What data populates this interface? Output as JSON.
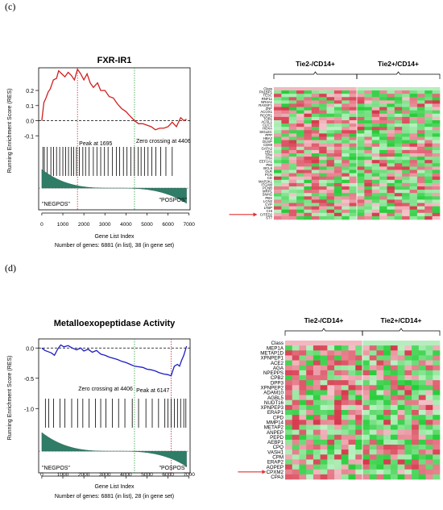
{
  "panels": [
    {
      "label": "(c)",
      "gsea": {
        "title": "FXR-IR1",
        "ylabel": "Running Enrichment Score (RES)",
        "xlabel": "Gene List Index",
        "footnote": "Number of genes: 6881 (in list), 38 (in gene set)",
        "yticks": [
          "0.2",
          "0.1",
          "0.0",
          "-0.1"
        ],
        "xticks": [
          "0",
          "1000",
          "2000",
          "3000",
          "4000",
          "5000",
          "6000",
          "7000"
        ],
        "peak_text": "Peak at 1695",
        "zero_text": "Zero crossing at 4406",
        "left_label": "\"NEGPOS\"",
        "right_label": "\"POSPOS\"",
        "ylim": [
          -0.12,
          0.35
        ],
        "peak_index": 1695,
        "zero_index": 4406,
        "curve": [
          [
            0,
            0.0
          ],
          [
            100,
            0.12
          ],
          [
            200,
            0.15
          ],
          [
            300,
            0.19
          ],
          [
            400,
            0.21
          ],
          [
            550,
            0.27
          ],
          [
            700,
            0.28
          ],
          [
            800,
            0.33
          ],
          [
            950,
            0.31
          ],
          [
            1100,
            0.29
          ],
          [
            1250,
            0.32
          ],
          [
            1400,
            0.3
          ],
          [
            1550,
            0.27
          ],
          [
            1695,
            0.34
          ],
          [
            1850,
            0.31
          ],
          [
            2000,
            0.27
          ],
          [
            2150,
            0.31
          ],
          [
            2300,
            0.25
          ],
          [
            2450,
            0.22
          ],
          [
            2650,
            0.25
          ],
          [
            2800,
            0.2
          ],
          [
            3000,
            0.2
          ],
          [
            3200,
            0.16
          ],
          [
            3400,
            0.15
          ],
          [
            3600,
            0.11
          ],
          [
            3800,
            0.08
          ],
          [
            4000,
            0.06
          ],
          [
            4200,
            0.03
          ],
          [
            4406,
            0.0
          ],
          [
            4600,
            -0.02
          ],
          [
            4800,
            -0.02
          ],
          [
            5000,
            -0.03
          ],
          [
            5200,
            -0.04
          ],
          [
            5400,
            -0.06
          ],
          [
            5600,
            -0.05
          ],
          [
            5800,
            -0.05
          ],
          [
            6000,
            -0.04
          ],
          [
            6200,
            -0.01
          ],
          [
            6400,
            -0.04
          ],
          [
            6600,
            0.02
          ],
          [
            6750,
            0.0
          ],
          [
            6881,
            0.01
          ]
        ],
        "hits": [
          50,
          120,
          260,
          430,
          560,
          700,
          850,
          1000,
          1130,
          1270,
          1400,
          1520,
          1650,
          1780,
          1950,
          2080,
          2250,
          2450,
          2620,
          2800,
          2980,
          3150,
          3360,
          3550,
          3700,
          3880,
          4050,
          4230,
          4400,
          4580,
          4720,
          4880,
          5050,
          5230,
          5420,
          5650,
          5900,
          6200
        ]
      },
      "heatmap": {
        "group_left": "Tie2-/CD14+",
        "group_right": "Tie2+/CD14+",
        "rows": [
          "Class",
          "FN1BP1",
          "TESC",
          "RNF11",
          "NR4A1",
          "RASSF1",
          "ZNF",
          "ACOX1",
          "RCOR1",
          "TOB1",
          "ACSL1",
          "CLIC1",
          "HOXA",
          "SIGLEC",
          "PPP",
          "HBA2",
          "DUSP",
          "CD69",
          "GATA2",
          "HBA",
          "TPM",
          "TRA",
          "EEF1A1",
          "PIM",
          "BCL6",
          "OLR",
          "PCN",
          "CD",
          "MAP2K1",
          "ITGAM",
          "PCNB",
          "MRPL",
          "SNHG",
          "PBX",
          "LCN2",
          "CYP",
          "LTBP",
          "CHI",
          "CITED2",
          "ST7"
        ],
        "arrow_row": "CITED2"
      }
    },
    {
      "label": "(d)",
      "gsea": {
        "title": "Metalloexopeptidase Activity",
        "ylabel": "Running Enrichment Score (RES)",
        "xlabel": "Gene List Index",
        "footnote": "Number of genes: 6881 (in list), 28 (in gene set)",
        "yticks": [
          "0.0",
          "-0.5",
          "-1.0"
        ],
        "xticks": [
          "0",
          "1000",
          "2000",
          "3000",
          "4000",
          "5000",
          "6000",
          "7000"
        ],
        "peak_text": "Peak at 6147",
        "zero_text": "Zero crossing at 4406",
        "left_label": "\"NEGPOS\"",
        "right_label": "\"POSPOS\"",
        "ylim": [
          -1.05,
          0.15
        ],
        "peak_index": 6147,
        "zero_index": 4406,
        "curve": [
          [
            0,
            0.0
          ],
          [
            150,
            -0.04
          ],
          [
            300,
            -0.06
          ],
          [
            450,
            -0.08
          ],
          [
            600,
            -0.12
          ],
          [
            750,
            -0.02
          ],
          [
            900,
            0.05
          ],
          [
            1050,
            0.02
          ],
          [
            1250,
            0.04
          ],
          [
            1450,
            0.0
          ],
          [
            1650,
            -0.03
          ],
          [
            1850,
            0.0
          ],
          [
            2000,
            -0.05
          ],
          [
            2200,
            -0.02
          ],
          [
            2400,
            -0.07
          ],
          [
            2600,
            -0.04
          ],
          [
            2800,
            -0.1
          ],
          [
            3000,
            -0.12
          ],
          [
            3200,
            -0.15
          ],
          [
            3400,
            -0.17
          ],
          [
            3600,
            -0.19
          ],
          [
            3800,
            -0.22
          ],
          [
            4000,
            -0.24
          ],
          [
            4200,
            -0.27
          ],
          [
            4406,
            -0.3
          ],
          [
            4600,
            -0.31
          ],
          [
            4800,
            -0.32
          ],
          [
            5000,
            -0.35
          ],
          [
            5200,
            -0.36
          ],
          [
            5400,
            -0.38
          ],
          [
            5600,
            -0.41
          ],
          [
            5800,
            -0.43
          ],
          [
            6000,
            -0.44
          ],
          [
            6147,
            -0.46
          ],
          [
            6300,
            -0.3
          ],
          [
            6450,
            -0.27
          ],
          [
            6550,
            -0.3
          ],
          [
            6650,
            -0.2
          ],
          [
            6750,
            -0.12
          ],
          [
            6881,
            0.03
          ]
        ],
        "hits": [
          170,
          330,
          560,
          860,
          1100,
          1420,
          1700,
          1950,
          2250,
          2550,
          2800,
          3050,
          3350,
          3650,
          3950,
          4300,
          4600,
          4950,
          5250,
          5550,
          5850,
          6000,
          6150,
          6300,
          6450,
          6600,
          6750,
          6850
        ]
      },
      "heatmap": {
        "group_left": "Tie2-/CD14+",
        "group_right": "Tie2+/CD14+",
        "rows": [
          "Class",
          "MEP1A",
          "METAP1D",
          "XPNPEP1",
          "ACE2",
          "AGA",
          "NPEPPS",
          "CPB2",
          "DPP3",
          "XPNPEP2",
          "ADAM10",
          "AGBL5",
          "NUDT16",
          "XPNPEP3",
          "ERAP1",
          "CPD",
          "MMP14",
          "METAP2",
          "ANPEP",
          "PEPD",
          "AEBP1",
          "CPQ",
          "VASH1",
          "CPM",
          "ERAP2",
          "AOPEP",
          "CPXM2",
          "CPA3"
        ],
        "arrow_row": "CPXM2"
      }
    }
  ],
  "colors": {
    "curve_c": "#d01f1f",
    "curve_d": "#1c1cc4",
    "peak_line": "#c0283c",
    "zero_line": "#2ea23a",
    "area_fill": "#2f7d67",
    "heat_red": "#d8304a",
    "heat_green": "#28d048",
    "arrow": "#e43030"
  }
}
